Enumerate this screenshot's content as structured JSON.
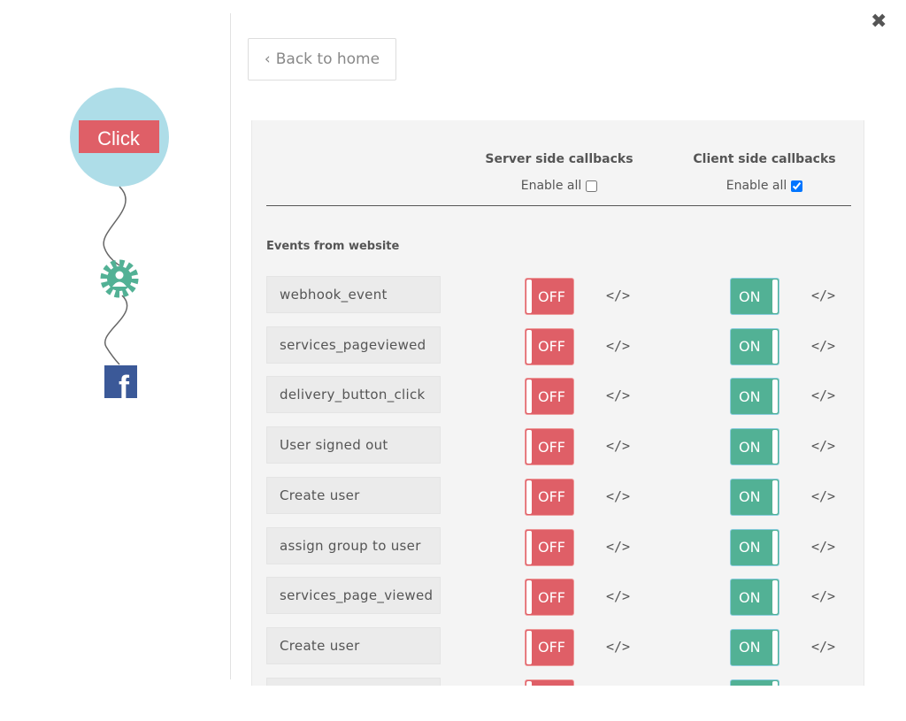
{
  "nav": {
    "back_label": "Back to home",
    "close_icon": "close-icon"
  },
  "flow": {
    "trigger_label": "Click",
    "colors": {
      "circle": "#aedde8",
      "button": "#df5f67",
      "gear": "#52b195",
      "facebook": "#3b5998"
    }
  },
  "table": {
    "server_header": "Server side callbacks",
    "client_header": "Client side callbacks",
    "enable_all_label": "Enable all",
    "server_enable_all": false,
    "client_enable_all": true,
    "section_title": "Events from website",
    "off_label": "OFF",
    "on_label": "ON",
    "code_label": "</>",
    "rows": [
      {
        "name": "webhook_event",
        "server": false,
        "client": true
      },
      {
        "name": "services_pageviewed",
        "server": false,
        "client": true
      },
      {
        "name": "delivery_button_click",
        "server": false,
        "client": true
      },
      {
        "name": "User signed out",
        "server": false,
        "client": true
      },
      {
        "name": "Create user",
        "server": false,
        "client": true
      },
      {
        "name": "assign group to user",
        "server": false,
        "client": true
      },
      {
        "name": "services_page_viewed",
        "server": false,
        "client": true
      },
      {
        "name": "Create user",
        "server": false,
        "client": true
      },
      {
        "name": "",
        "server": false,
        "client": true
      }
    ]
  },
  "colors": {
    "off": "#df5f67",
    "on": "#52b195"
  }
}
